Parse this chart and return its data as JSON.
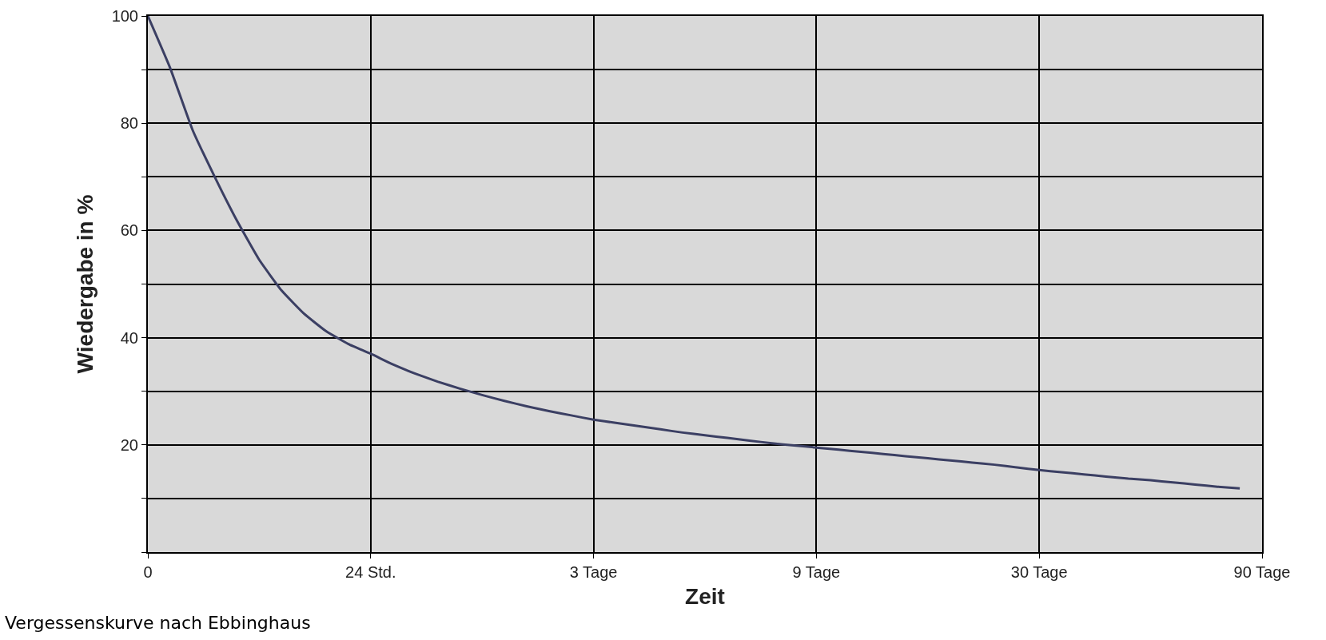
{
  "chart_data": {
    "type": "line",
    "xlabel": "Zeit",
    "ylabel": "Wiedergabe in %",
    "annotations": [
      "Vergessenskurve nach Ebbinghaus"
    ],
    "categories": [
      "0",
      null,
      null,
      null,
      null,
      null,
      null,
      null,
      null,
      null,
      "24 Std.",
      null,
      null,
      null,
      null,
      null,
      null,
      null,
      null,
      null,
      "3 Tage",
      null,
      null,
      null,
      null,
      null,
      null,
      null,
      null,
      null,
      "9 Tage",
      null,
      null,
      null,
      null,
      null,
      null,
      null,
      null,
      null,
      "30 Tage",
      null,
      null,
      null,
      null,
      null,
      null,
      null,
      null,
      null,
      "90 Tage"
    ],
    "series": [
      {
        "color": "#3b3f63",
        "values": [
          100,
          90.3,
          78.8,
          70,
          61.8,
          54.5,
          48.8,
          44.5,
          41.2,
          38.8,
          37,
          35,
          33.3,
          31.8,
          30.5,
          29.3,
          28.2,
          27.2,
          26.3,
          25.5,
          24.7,
          24.1,
          23.5,
          22.9,
          22.3,
          21.8,
          21.3,
          20.8,
          20.3,
          19.9,
          19.5,
          19.1,
          18.7,
          18.3,
          17.9,
          17.5,
          17.1,
          16.7,
          16.3,
          15.8,
          15.3,
          14.9,
          14.5,
          14.1,
          13.7,
          13.4,
          13,
          12.6,
          12.2,
          11.9,
          null
        ]
      }
    ],
    "ylim": [
      0,
      100
    ],
    "yticks": [
      {
        "value": 0,
        "label": null
      },
      {
        "value": 10,
        "label": null
      },
      20,
      {
        "value": 30,
        "label": null
      },
      40,
      {
        "value": 50,
        "label": null
      },
      60,
      {
        "value": 70,
        "label": null
      },
      80,
      {
        "value": 90,
        "label": null
      },
      100
    ],
    "grid": true,
    "marker": "none",
    "line_style": "solid"
  }
}
